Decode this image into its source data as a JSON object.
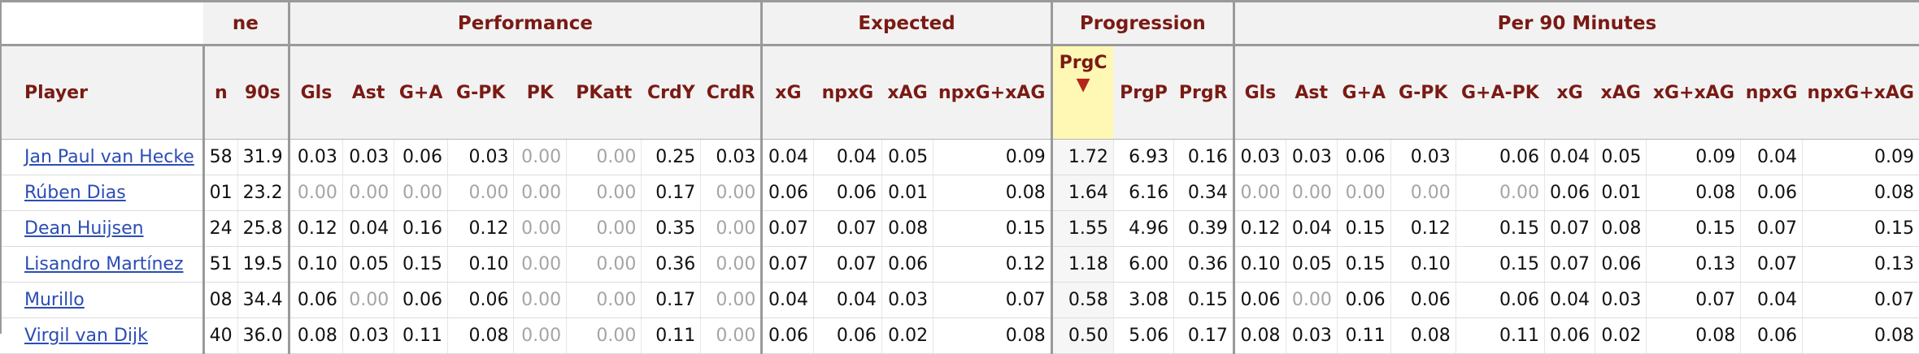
{
  "over_headers": {
    "playing_time_partial": "ne",
    "performance": "Performance",
    "expected": "Expected",
    "progression": "Progression",
    "per90": "Per 90 Minutes"
  },
  "columns": {
    "player": "Player",
    "min_partial": "n",
    "s90": "90s",
    "gls": "Gls",
    "ast": "Ast",
    "ga": "G+A",
    "gpk": "G-PK",
    "pk": "PK",
    "pkatt": "PKatt",
    "crdy": "CrdY",
    "crdr": "CrdR",
    "xg": "xG",
    "npxg": "npxG",
    "xag": "xAG",
    "npxg_xag": "npxG+xAG",
    "prgc": "PrgC",
    "prgp": "PrgP",
    "prgr": "PrgR",
    "p90_gls": "Gls",
    "p90_ast": "Ast",
    "p90_ga": "G+A",
    "p90_gpk": "G-PK",
    "p90_gapk": "G+A-PK",
    "p90_xg": "xG",
    "p90_xag": "xAG",
    "p90_xgxag": "xG+xAG",
    "p90_npxg": "npxG",
    "p90_npxgxag": "npxG+xAG"
  },
  "sort_indicator": "▼",
  "rows": [
    {
      "player": "Jan Paul van Hecke",
      "min": "58",
      "s90": "31.9",
      "gls": "0.03",
      "ast": "0.03",
      "ga": "0.06",
      "gpk": "0.03",
      "pk": "0.00",
      "pkatt": "0.00",
      "crdy": "0.25",
      "crdr": "0.03",
      "xg": "0.04",
      "npxg": "0.04",
      "xag": "0.05",
      "npxg_xag": "0.09",
      "prgc": "1.72",
      "prgp": "6.93",
      "prgr": "0.16",
      "p90_gls": "0.03",
      "p90_ast": "0.03",
      "p90_ga": "0.06",
      "p90_gpk": "0.03",
      "p90_gapk": "0.06",
      "p90_xg": "0.04",
      "p90_xag": "0.05",
      "p90_xgxag": "0.09",
      "p90_npxg": "0.04",
      "p90_npxgxag": "0.09"
    },
    {
      "player": "Rúben Dias",
      "min": "01",
      "s90": "23.2",
      "gls": "0.00",
      "ast": "0.00",
      "ga": "0.00",
      "gpk": "0.00",
      "pk": "0.00",
      "pkatt": "0.00",
      "crdy": "0.17",
      "crdr": "0.00",
      "xg": "0.06",
      "npxg": "0.06",
      "xag": "0.01",
      "npxg_xag": "0.08",
      "prgc": "1.64",
      "prgp": "6.16",
      "prgr": "0.34",
      "p90_gls": "0.00",
      "p90_ast": "0.00",
      "p90_ga": "0.00",
      "p90_gpk": "0.00",
      "p90_gapk": "0.00",
      "p90_xg": "0.06",
      "p90_xag": "0.01",
      "p90_xgxag": "0.08",
      "p90_npxg": "0.06",
      "p90_npxgxag": "0.08"
    },
    {
      "player": "Dean Huijsen",
      "min": "24",
      "s90": "25.8",
      "gls": "0.12",
      "ast": "0.04",
      "ga": "0.16",
      "gpk": "0.12",
      "pk": "0.00",
      "pkatt": "0.00",
      "crdy": "0.35",
      "crdr": "0.00",
      "xg": "0.07",
      "npxg": "0.07",
      "xag": "0.08",
      "npxg_xag": "0.15",
      "prgc": "1.55",
      "prgp": "4.96",
      "prgr": "0.39",
      "p90_gls": "0.12",
      "p90_ast": "0.04",
      "p90_ga": "0.15",
      "p90_gpk": "0.12",
      "p90_gapk": "0.15",
      "p90_xg": "0.07",
      "p90_xag": "0.08",
      "p90_xgxag": "0.15",
      "p90_npxg": "0.07",
      "p90_npxgxag": "0.15"
    },
    {
      "player": "Lisandro Martínez",
      "min": "51",
      "s90": "19.5",
      "gls": "0.10",
      "ast": "0.05",
      "ga": "0.15",
      "gpk": "0.10",
      "pk": "0.00",
      "pkatt": "0.00",
      "crdy": "0.36",
      "crdr": "0.00",
      "xg": "0.07",
      "npxg": "0.07",
      "xag": "0.06",
      "npxg_xag": "0.12",
      "prgc": "1.18",
      "prgp": "6.00",
      "prgr": "0.36",
      "p90_gls": "0.10",
      "p90_ast": "0.05",
      "p90_ga": "0.15",
      "p90_gpk": "0.10",
      "p90_gapk": "0.15",
      "p90_xg": "0.07",
      "p90_xag": "0.06",
      "p90_xgxag": "0.13",
      "p90_npxg": "0.07",
      "p90_npxgxag": "0.13"
    },
    {
      "player": "Murillo",
      "min": "08",
      "s90": "34.4",
      "gls": "0.06",
      "ast": "0.00",
      "ga": "0.06",
      "gpk": "0.06",
      "pk": "0.00",
      "pkatt": "0.00",
      "crdy": "0.17",
      "crdr": "0.00",
      "xg": "0.04",
      "npxg": "0.04",
      "xag": "0.03",
      "npxg_xag": "0.07",
      "prgc": "0.58",
      "prgp": "3.08",
      "prgr": "0.15",
      "p90_gls": "0.06",
      "p90_ast": "0.00",
      "p90_ga": "0.06",
      "p90_gpk": "0.06",
      "p90_gapk": "0.06",
      "p90_xg": "0.04",
      "p90_xag": "0.03",
      "p90_xgxag": "0.07",
      "p90_npxg": "0.04",
      "p90_npxgxag": "0.07"
    },
    {
      "player": "Virgil van Dijk",
      "min": "40",
      "s90": "36.0",
      "gls": "0.08",
      "ast": "0.03",
      "ga": "0.11",
      "gpk": "0.08",
      "pk": "0.00",
      "pkatt": "0.00",
      "crdy": "0.11",
      "crdr": "0.00",
      "xg": "0.06",
      "npxg": "0.06",
      "xag": "0.02",
      "npxg_xag": "0.08",
      "prgc": "0.50",
      "prgp": "5.06",
      "prgr": "0.17",
      "p90_gls": "0.08",
      "p90_ast": "0.03",
      "p90_ga": "0.11",
      "p90_gpk": "0.08",
      "p90_gapk": "0.11",
      "p90_xg": "0.06",
      "p90_xag": "0.02",
      "p90_xgxag": "0.08",
      "p90_npxg": "0.06",
      "p90_npxgxag": "0.08"
    }
  ]
}
